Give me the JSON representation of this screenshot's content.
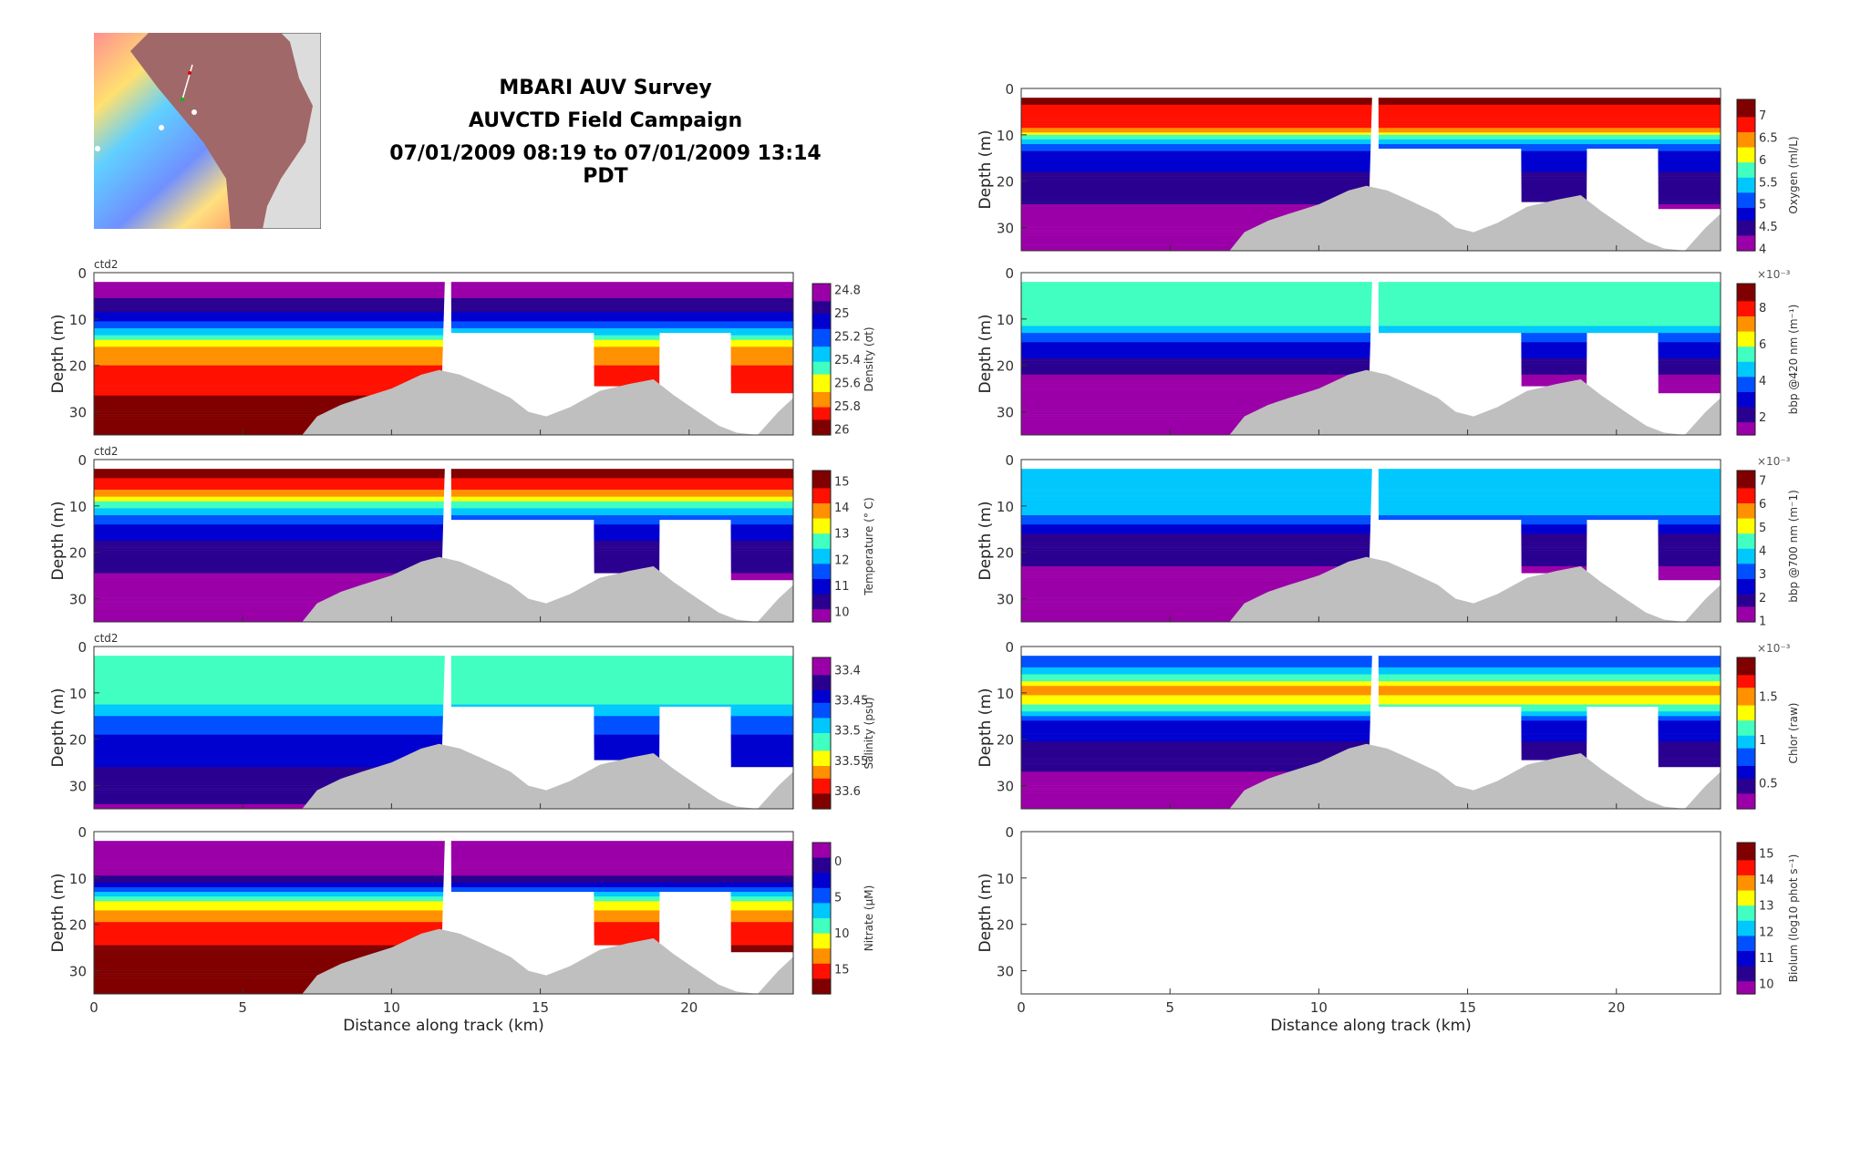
{
  "header": {
    "title_lines": [
      "MBARI AUV Survey",
      "AUVCTD Field Campaign",
      "07/01/2009 08:19 to 07/01/2009 13:14 PDT"
    ]
  },
  "colors": {
    "seafloor": "#bfbfbf",
    "nodata": "#ffffff",
    "colormap": [
      "#9b00a8",
      "#2a0090",
      "#0000d0",
      "#0050ff",
      "#00c8ff",
      "#40ffc0",
      "#ffff00",
      "#ff9000",
      "#ff1000",
      "#800000"
    ]
  },
  "chart_data": {
    "type": "heatmap",
    "xlabel": "Distance along track (km)",
    "ylabel": "Depth (m)",
    "xlim": [
      0,
      23.5
    ],
    "ylim": [
      35,
      0
    ],
    "xticks": [
      0,
      5,
      10,
      15,
      20
    ],
    "yticks": [
      0,
      10,
      20,
      30
    ],
    "data_top_depth": 2,
    "seafloor_profile": [
      [
        0,
        40
      ],
      [
        7,
        35
      ],
      [
        7.5,
        31
      ],
      [
        8.3,
        28.5
      ],
      [
        9,
        27
      ],
      [
        10,
        25
      ],
      [
        11,
        22
      ],
      [
        11.6,
        21
      ],
      [
        12.3,
        22
      ],
      [
        13,
        24
      ],
      [
        14,
        27
      ],
      [
        14.6,
        30
      ],
      [
        15.2,
        31
      ],
      [
        16,
        29
      ],
      [
        17,
        25.5
      ],
      [
        18,
        24
      ],
      [
        18.8,
        23
      ],
      [
        19.5,
        26.5
      ],
      [
        20.3,
        30
      ],
      [
        21,
        33
      ],
      [
        21.6,
        34.5
      ],
      [
        22.3,
        35
      ],
      [
        23,
        30
      ],
      [
        23.5,
        27
      ]
    ],
    "data_bottom_profile": [
      [
        0,
        35
      ],
      [
        7,
        35
      ],
      [
        7.5,
        32
      ],
      [
        8.3,
        29.5
      ],
      [
        9,
        28
      ],
      [
        10,
        26
      ],
      [
        11,
        23.5
      ],
      [
        11.7,
        22
      ],
      [
        11.8,
        0
      ],
      [
        12,
        0
      ],
      [
        12.01,
        13
      ],
      [
        16.8,
        13
      ],
      [
        16.81,
        24.5
      ],
      [
        19,
        24.5
      ],
      [
        19.01,
        13
      ],
      [
        21.4,
        13
      ],
      [
        21.41,
        26
      ],
      [
        23.5,
        26
      ]
    ],
    "panels": [
      {
        "id": "density",
        "column": "left",
        "row": 0,
        "tag": "ctd2",
        "cbar_label": "Density (σt)",
        "multiplier": "",
        "range": [
          24.75,
          26.05
        ],
        "reversed": true,
        "ticks": [
          "24.8",
          "25",
          "25.2",
          "25.4",
          "25.6",
          "25.8",
          "26"
        ],
        "tick_values": [
          24.8,
          25,
          25.2,
          25.4,
          25.6,
          25.8,
          26
        ],
        "profile": [
          [
            2,
            24.8
          ],
          [
            7,
            24.92
          ],
          [
            10,
            25.1
          ],
          [
            13,
            25.4
          ],
          [
            16,
            25.68
          ],
          [
            22,
            25.85
          ],
          [
            30,
            25.98
          ],
          [
            35,
            26.05
          ]
        ]
      },
      {
        "id": "temperature",
        "column": "left",
        "row": 1,
        "tag": "ctd2",
        "cbar_label": "Temperature (° C)",
        "multiplier": "",
        "range": [
          9.6,
          15.4
        ],
        "reversed": false,
        "ticks": [
          "15",
          "14",
          "13",
          "12",
          "11",
          "10"
        ],
        "tick_values": [
          15,
          14,
          13,
          12,
          11,
          10
        ],
        "profile": [
          [
            2,
            15.2
          ],
          [
            6,
            14.4
          ],
          [
            9,
            13
          ],
          [
            12,
            11.8
          ],
          [
            15,
            11
          ],
          [
            20,
            10.4
          ],
          [
            30,
            9.9
          ],
          [
            35,
            9.8
          ]
        ]
      },
      {
        "id": "salinity",
        "column": "left",
        "row": 2,
        "tag": "ctd2",
        "cbar_label": "Salinity (psu)",
        "multiplier": "",
        "range": [
          33.38,
          33.63
        ],
        "reversed": true,
        "ticks": [
          "33.4",
          "33.45",
          "33.5",
          "33.55",
          "33.6"
        ],
        "tick_values": [
          33.4,
          33.45,
          33.5,
          33.55,
          33.6
        ],
        "profile": [
          [
            2,
            33.51
          ],
          [
            12,
            33.51
          ],
          [
            16,
            33.47
          ],
          [
            22,
            33.44
          ],
          [
            30,
            33.42
          ],
          [
            35,
            33.4
          ]
        ]
      },
      {
        "id": "nitrate",
        "column": "left",
        "row": 3,
        "tag": "",
        "cbar_label": "Nitrate (μM)",
        "multiplier": "",
        "range": [
          -2.5,
          18.5
        ],
        "reversed": true,
        "ticks": [
          "0",
          "5",
          "10",
          "15"
        ],
        "tick_values": [
          0,
          5,
          10,
          15
        ],
        "profile": [
          [
            2,
            -2.5
          ],
          [
            9,
            -1
          ],
          [
            12,
            4
          ],
          [
            14,
            9
          ],
          [
            17,
            12.5
          ],
          [
            21,
            15.5
          ],
          [
            28,
            17.5
          ],
          [
            35,
            18.5
          ]
        ]
      },
      {
        "id": "oxygen",
        "column": "right",
        "row": -1,
        "tag": "",
        "cbar_label": "Oxygen (ml/L)",
        "multiplier": "",
        "range": [
          3.95,
          7.35
        ],
        "reversed": false,
        "ticks": [
          "7",
          "6.5",
          "6",
          "5.5",
          "5",
          "4.5",
          "4"
        ],
        "tick_values": [
          7,
          6.5,
          6,
          5.5,
          5,
          4.5,
          4
        ],
        "profile": [
          [
            2,
            7.1
          ],
          [
            8,
            6.7
          ],
          [
            11,
            5.6
          ],
          [
            13,
            5
          ],
          [
            18,
            4.6
          ],
          [
            28,
            4.15
          ],
          [
            35,
            4
          ]
        ]
      },
      {
        "id": "bbp420",
        "column": "right",
        "row": 0,
        "tag": "",
        "cbar_label": "bbp @420 nm (m⁻¹)",
        "multiplier": "×10⁻³",
        "range": [
          1,
          9.3
        ],
        "reversed": false,
        "ticks": [
          "8",
          "6",
          "4",
          "2"
        ],
        "tick_values": [
          8,
          6,
          4,
          2
        ],
        "profile": [
          [
            2,
            5.2
          ],
          [
            11,
            5.2
          ],
          [
            15,
            3.4
          ],
          [
            22,
            1.8
          ],
          [
            35,
            1.2
          ]
        ]
      },
      {
        "id": "bbp700",
        "column": "right",
        "row": 1,
        "tag": "",
        "cbar_label": "bbp @700 nm (m⁻1)",
        "multiplier": "×10⁻³",
        "range": [
          0.95,
          7.4
        ],
        "reversed": false,
        "ticks": [
          "7",
          "6",
          "5",
          "4",
          "3",
          "2",
          "1"
        ],
        "tick_values": [
          7,
          6,
          5,
          4,
          3,
          2,
          1
        ],
        "profile": [
          [
            2,
            3.8
          ],
          [
            11,
            3.7
          ],
          [
            16,
            2.2
          ],
          [
            25,
            1.4
          ],
          [
            35,
            1.1
          ]
        ]
      },
      {
        "id": "chlor",
        "column": "right",
        "row": 2,
        "tag": "",
        "cbar_label": "Chlor (raw)",
        "multiplier": "×10⁻³",
        "range": [
          0.2,
          1.95
        ],
        "reversed": false,
        "ticks": [
          "1.5",
          "1",
          "0.5"
        ],
        "tick_values": [
          1.5,
          1,
          0.5
        ],
        "profile": [
          [
            2,
            0.75
          ],
          [
            5,
            0.95
          ],
          [
            9,
            1.5
          ],
          [
            12,
            1.3
          ],
          [
            16,
            0.7
          ],
          [
            24,
            0.4
          ],
          [
            35,
            0.3
          ]
        ]
      },
      {
        "id": "biolum",
        "column": "right",
        "row": 3,
        "tag": "",
        "cbar_label": "Biolum (log10 phot s⁻¹)",
        "multiplier": "",
        "range": [
          9.6,
          15.4
        ],
        "reversed": false,
        "ticks": [
          "15",
          "14",
          "13",
          "12",
          "11",
          "10"
        ],
        "tick_values": [
          15,
          14,
          13,
          12,
          11,
          10
        ],
        "profile": []
      }
    ]
  }
}
